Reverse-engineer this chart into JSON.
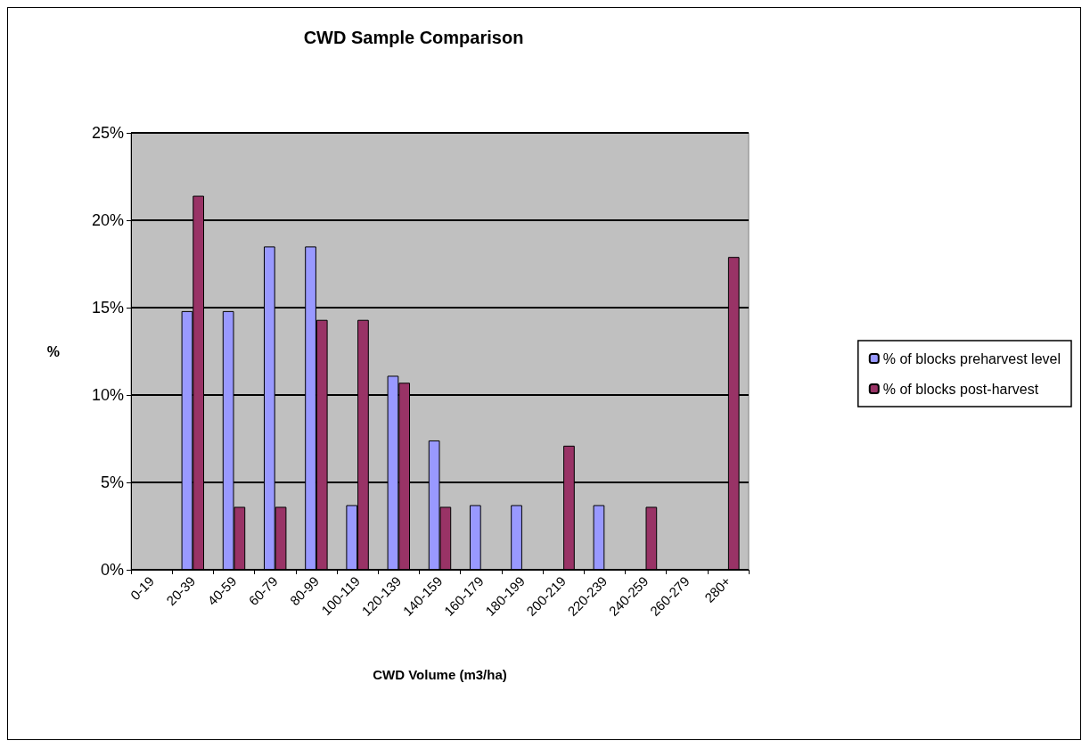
{
  "chart_data": {
    "type": "bar",
    "title": "CWD Sample Comparison",
    "xlabel": "CWD Volume (m3/ha)",
    "ylabel": "%",
    "categories": [
      "0-19",
      "20-39",
      "40-59",
      "60-79",
      "80-99",
      "100-119",
      "120-139",
      "140-159",
      "160-179",
      "180-199",
      "200-219",
      "220-239",
      "240-259",
      "260-279",
      "280+"
    ],
    "series": [
      {
        "name": "% of blocks preharvest level",
        "color": "#9999ff",
        "values": [
          0,
          14.8,
          14.8,
          18.5,
          18.5,
          3.7,
          11.1,
          7.4,
          3.7,
          3.7,
          0,
          3.7,
          0,
          0,
          0
        ]
      },
      {
        "name": "% of blocks post-harvest",
        "color": "#993366",
        "values": [
          0,
          21.4,
          3.6,
          3.6,
          14.3,
          14.3,
          10.7,
          3.6,
          0,
          0,
          7.1,
          0,
          3.6,
          0,
          17.9
        ]
      }
    ],
    "ylim": [
      0,
      25
    ],
    "yticks": [
      {
        "value": 0,
        "label": "0%"
      },
      {
        "value": 5,
        "label": "5%"
      },
      {
        "value": 10,
        "label": "10%"
      },
      {
        "value": 15,
        "label": "15%"
      },
      {
        "value": 20,
        "label": "20%"
      },
      {
        "value": 25,
        "label": "25%"
      }
    ],
    "grid": "y",
    "legend": "right"
  }
}
